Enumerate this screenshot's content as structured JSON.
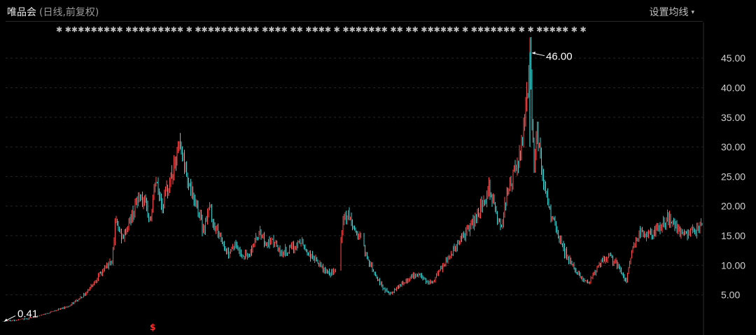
{
  "header": {
    "stock_name": "唯品会",
    "mode_label": "(日线,前复权)",
    "ma_setting_label": "设置均线",
    "caret": "▾"
  },
  "chart_data": {
    "type": "candlestick",
    "title": "",
    "xlabel": "",
    "ylabel": "",
    "y_axis_position": "right",
    "ylim": [
      0,
      47.5
    ],
    "y_ticks": [
      5,
      10,
      15,
      20,
      25,
      30,
      35,
      40,
      45
    ],
    "y_tick_labels": [
      "5.00",
      "10.00",
      "15.00",
      "20.00",
      "25.00",
      "30.00",
      "35.00",
      "40.00",
      "45.00"
    ],
    "grid": true,
    "up_color": "#ff4d4d",
    "down_color": "#3ad1d1",
    "price_path": [
      [
        0,
        0.5
      ],
      [
        20,
        0.7
      ],
      [
        40,
        1.0
      ],
      [
        60,
        1.6
      ],
      [
        80,
        2.4
      ],
      [
        100,
        3.2
      ],
      [
        120,
        5.0
      ],
      [
        140,
        8.0
      ],
      [
        160,
        11.0
      ],
      [
        165,
        17.5
      ],
      [
        175,
        14.5
      ],
      [
        190,
        19.0
      ],
      [
        200,
        22.0
      ],
      [
        210,
        19.0
      ],
      [
        215,
        17.5
      ],
      [
        222,
        24.5
      ],
      [
        232,
        20.0
      ],
      [
        242,
        24.0
      ],
      [
        250,
        27.0
      ],
      [
        256,
        30.5
      ],
      [
        262,
        28.0
      ],
      [
        268,
        25.0
      ],
      [
        275,
        21.5
      ],
      [
        282,
        20.0
      ],
      [
        290,
        16.0
      ],
      [
        300,
        20.0
      ],
      [
        305,
        17.0
      ],
      [
        312,
        15.5
      ],
      [
        318,
        14.0
      ],
      [
        325,
        12.0
      ],
      [
        335,
        13.5
      ],
      [
        345,
        12.0
      ],
      [
        355,
        11.5
      ],
      [
        362,
        13.5
      ],
      [
        372,
        16.0
      ],
      [
        380,
        13.5
      ],
      [
        392,
        14.0
      ],
      [
        400,
        12.0
      ],
      [
        410,
        12.5
      ],
      [
        420,
        13.0
      ],
      [
        430,
        14.0
      ],
      [
        440,
        12.0
      ],
      [
        450,
        11.0
      ],
      [
        460,
        9.5
      ],
      [
        470,
        8.5
      ],
      [
        480,
        9.0
      ],
      [
        486,
        14.0
      ],
      [
        492,
        18.5
      ],
      [
        500,
        18.0
      ],
      [
        508,
        15.5
      ],
      [
        515,
        15.0
      ],
      [
        522,
        12.0
      ],
      [
        530,
        10.0
      ],
      [
        538,
        8.0
      ],
      [
        548,
        6.0
      ],
      [
        558,
        5.2
      ],
      [
        568,
        6.5
      ],
      [
        578,
        7.0
      ],
      [
        588,
        8.0
      ],
      [
        598,
        8.5
      ],
      [
        608,
        7.5
      ],
      [
        618,
        7.0
      ],
      [
        628,
        9.0
      ],
      [
        640,
        11.0
      ],
      [
        650,
        13.0
      ],
      [
        660,
        15.0
      ],
      [
        670,
        16.0
      ],
      [
        680,
        18.0
      ],
      [
        690,
        21.0
      ],
      [
        700,
        23.0
      ],
      [
        708,
        19.0
      ],
      [
        715,
        16.0
      ],
      [
        722,
        21.0
      ],
      [
        730,
        24.0
      ],
      [
        740,
        27.0
      ],
      [
        745,
        30.0
      ],
      [
        750,
        36.0
      ],
      [
        755,
        42.0
      ],
      [
        757,
        46.0
      ],
      [
        760,
        34.0
      ],
      [
        763,
        27.0
      ],
      [
        767,
        34.0
      ],
      [
        772,
        28.0
      ],
      [
        778,
        23.0
      ],
      [
        785,
        19.0
      ],
      [
        792,
        17.0
      ],
      [
        800,
        14.0
      ],
      [
        810,
        11.5
      ],
      [
        820,
        9.5
      ],
      [
        830,
        8.0
      ],
      [
        840,
        7.0
      ],
      [
        850,
        9.0
      ],
      [
        860,
        10.5
      ],
      [
        870,
        11.5
      ],
      [
        880,
        10.5
      ],
      [
        888,
        8.5
      ],
      [
        895,
        7.5
      ],
      [
        900,
        11.0
      ],
      [
        905,
        13.5
      ],
      [
        915,
        15.5
      ],
      [
        930,
        15.0
      ],
      [
        945,
        16.5
      ],
      [
        955,
        18.0
      ],
      [
        965,
        16.5
      ],
      [
        975,
        15.0
      ],
      [
        985,
        15.5
      ],
      [
        995,
        16.0
      ],
      [
        1003,
        17.0
      ]
    ],
    "annotations": [
      {
        "label": "46.00",
        "value": 46.0,
        "type": "max"
      },
      {
        "label": "0.41",
        "value": 0.41,
        "type": "min"
      }
    ],
    "event_marker": "$"
  },
  "event_stars": "✱  ✱✱✱✱✱✱✱✱✱  ✱✱✱✱✱✱✱✱✱ ✱  ✱✱✱✱✱✱✱✱✱✱  ✱✱✱✱  ✱✱  ✱✱✱✱ ✱  ✱✱✱✱✱✱✱  ✱✱  ✱✱  ✱✱✱✱✱✱ ✱  ✱✱✱✱✱✱✱ ✱  ✱ ✱✱✱✱✱  ✱  ✱"
}
